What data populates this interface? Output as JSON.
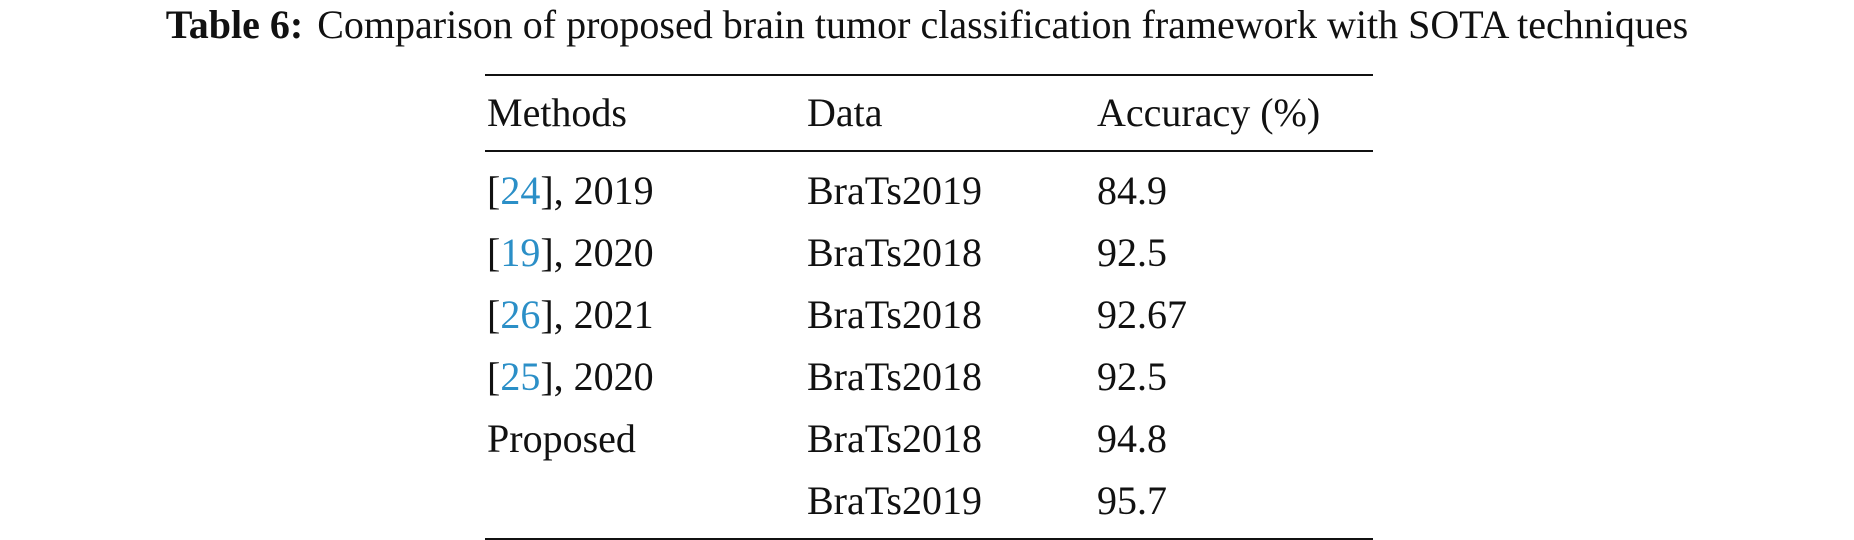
{
  "caption": {
    "label": "Table 6:",
    "text": "Comparison of proposed brain tumor classification framework with SOTA techniques"
  },
  "table": {
    "headers": [
      "Methods",
      "Data",
      "Accuracy (%)"
    ],
    "rows": [
      {
        "cite": "24",
        "year": ", 2019",
        "method": "",
        "data": "BraTs2019",
        "accuracy": "84.9"
      },
      {
        "cite": "19",
        "year": ", 2020",
        "method": "",
        "data": "BraTs2018",
        "accuracy": "92.5"
      },
      {
        "cite": "26",
        "year": ", 2021",
        "method": "",
        "data": "BraTs2018",
        "accuracy": "92.67"
      },
      {
        "cite": "25",
        "year": ", 2020",
        "method": "",
        "data": "BraTs2018",
        "accuracy": "92.5"
      },
      {
        "cite": "",
        "year": "",
        "method": "Proposed",
        "data": "BraTs2018",
        "accuracy": "94.8"
      },
      {
        "cite": "",
        "year": "",
        "method": "",
        "data": "BraTs2019",
        "accuracy": "95.7"
      }
    ]
  },
  "colors": {
    "citation_link": "#2b8fc7",
    "text": "#111111"
  }
}
